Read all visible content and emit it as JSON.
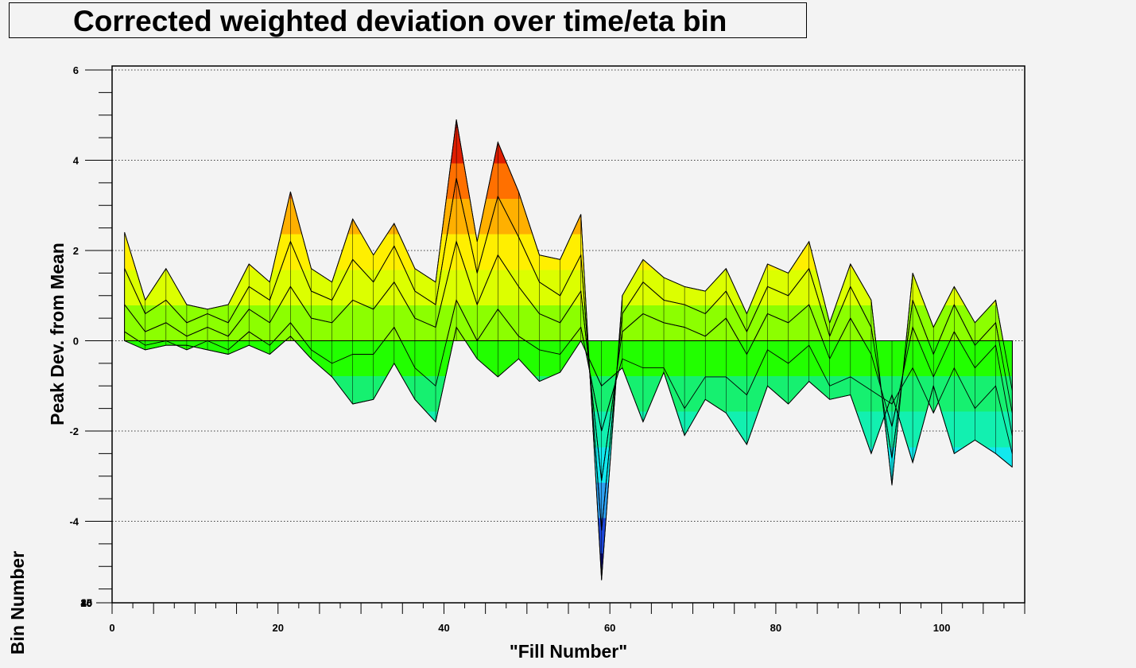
{
  "title": "Corrected weighted deviation over time/eta bin",
  "chart_data": {
    "type": "area",
    "title": "Corrected weighted deviation over time/eta bin",
    "xlabel": "\"Fill Number\"",
    "ylabel": "Peak Dev. from Mean",
    "zlabel": "Bin Number",
    "xlim": [
      0,
      110
    ],
    "ylim": [
      -6,
      6
    ],
    "x_ticks": [
      "0",
      "20",
      "40",
      "60",
      "80",
      "100"
    ],
    "y_ticks": [
      "-4",
      "-2",
      "0",
      "2",
      "4",
      "6"
    ],
    "z_ticks": [
      "0",
      "5",
      "10",
      "15",
      "20",
      "25",
      "30",
      "35",
      "40",
      "45"
    ],
    "grid": true,
    "palette": [
      "#0a0a80",
      "#1c46d8",
      "#2ea0f0",
      "#12e8ee",
      "#12f0b0",
      "#16f070",
      "#22ff00",
      "#8cff00",
      "#dcff00",
      "#ffef00",
      "#ffb000",
      "#ff7000",
      "#e01e00",
      "#a00000"
    ],
    "x": [
      1.5,
      4,
      6.5,
      9,
      11.5,
      14,
      16.5,
      19,
      21.5,
      24,
      26.5,
      29,
      31.5,
      34,
      36.5,
      39,
      41.5,
      44,
      46.5,
      49,
      51.5,
      54,
      56.5,
      59,
      61.5,
      64,
      66.5,
      69,
      71.5,
      74,
      76.5,
      79,
      81.5,
      84,
      86.5,
      89,
      91.5,
      94,
      96.5,
      99,
      101.5,
      104,
      106.5,
      108.5
    ],
    "series": [
      {
        "values": [
          2.4,
          0.9,
          1.6,
          0.8,
          0.7,
          0.8,
          1.7,
          1.3,
          3.3,
          1.6,
          1.3,
          2.7,
          1.9,
          2.6,
          1.6,
          1.3,
          4.9,
          2.2,
          4.4,
          3.3,
          1.9,
          1.8,
          2.8,
          -5.3,
          1.0,
          1.8,
          1.4,
          1.2,
          1.1,
          1.6,
          0.6,
          1.7,
          1.5,
          2.2,
          0.4,
          1.7,
          0.9,
          -3.2,
          1.5,
          0.3,
          1.2,
          0.4,
          0.9,
          -1.1
        ]
      },
      {
        "values": [
          1.6,
          0.6,
          0.9,
          0.4,
          0.6,
          0.4,
          1.2,
          0.9,
          2.2,
          1.1,
          0.9,
          1.8,
          1.3,
          2.1,
          1.1,
          0.8,
          3.6,
          1.5,
          3.2,
          2.3,
          1.3,
          1.0,
          1.9,
          -4.2,
          0.6,
          1.3,
          0.9,
          0.8,
          0.6,
          1.1,
          0.2,
          1.2,
          1.0,
          1.6,
          0.1,
          1.2,
          0.3,
          -2.6,
          0.9,
          -0.3,
          0.8,
          -0.1,
          0.4,
          -1.6
        ]
      },
      {
        "values": [
          0.8,
          0.2,
          0.4,
          0.1,
          0.3,
          0.1,
          0.7,
          0.4,
          1.2,
          0.5,
          0.4,
          0.9,
          0.7,
          1.3,
          0.5,
          0.3,
          2.2,
          0.8,
          1.9,
          1.2,
          0.6,
          0.4,
          1.1,
          -3.1,
          0.2,
          0.6,
          0.4,
          0.3,
          0.1,
          0.5,
          -0.3,
          0.6,
          0.4,
          0.8,
          -0.4,
          0.5,
          -0.3,
          -1.9,
          0.3,
          -0.8,
          0.2,
          -0.6,
          -0.1,
          -2.1
        ]
      },
      {
        "values": [
          0.2,
          -0.1,
          0.0,
          -0.2,
          0.0,
          -0.2,
          0.2,
          -0.1,
          0.4,
          -0.2,
          -0.5,
          -0.3,
          -0.3,
          0.3,
          -0.6,
          -1.0,
          0.9,
          0.0,
          0.7,
          0.1,
          -0.2,
          -0.3,
          0.3,
          -2.0,
          -0.4,
          -0.6,
          -0.6,
          -1.5,
          -0.8,
          -0.8,
          -1.2,
          -0.2,
          -0.5,
          -0.1,
          -1.0,
          -0.8,
          -1.1,
          -1.4,
          -0.6,
          -1.6,
          -0.6,
          -1.5,
          -1.0,
          -2.5
        ]
      },
      {
        "values": [
          0.0,
          -0.2,
          -0.1,
          -0.1,
          -0.2,
          -0.3,
          -0.1,
          -0.3,
          0.1,
          -0.4,
          -0.8,
          -1.4,
          -1.3,
          -0.5,
          -1.3,
          -1.8,
          0.3,
          -0.4,
          -0.8,
          -0.4,
          -0.9,
          -0.7,
          0.0,
          -1.0,
          -0.6,
          -1.8,
          -0.7,
          -2.1,
          -1.3,
          -1.6,
          -2.3,
          -1.0,
          -1.4,
          -0.9,
          -1.3,
          -1.2,
          -2.5,
          -1.2,
          -2.7,
          -1.0,
          -2.5,
          -2.2,
          -2.5,
          -2.8
        ]
      }
    ]
  }
}
